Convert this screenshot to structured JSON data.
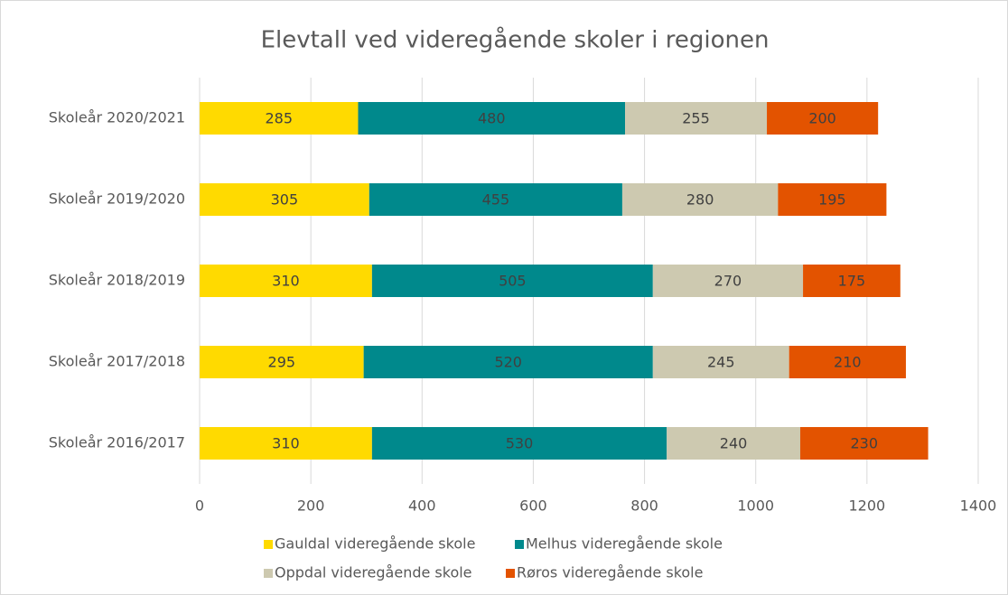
{
  "chart_data": {
    "type": "stacked-bar-horizontal",
    "title": "Elevtall ved videregående skoler i regionen",
    "categories": [
      "Skoleår 2020/2021",
      "Skoleår 2019/2020",
      "Skoleår 2018/2019",
      "Skoleår 2017/2018",
      "Skoleår 2016/2017"
    ],
    "series": [
      {
        "name": "Gauldal videregående skole",
        "color": "#ffda00",
        "values": [
          285,
          305,
          310,
          295,
          310
        ]
      },
      {
        "name": "Melhus videregående skole",
        "color": "#00898c",
        "values": [
          480,
          455,
          505,
          520,
          530
        ]
      },
      {
        "name": "Oppdal videregående skole",
        "color": "#cdc9b0",
        "values": [
          255,
          280,
          270,
          245,
          240
        ]
      },
      {
        "name": "Røros videregående skole",
        "color": "#e35300",
        "values": [
          200,
          195,
          175,
          210,
          230
        ]
      }
    ],
    "xlim": [
      0,
      1400
    ],
    "xticks": [
      0,
      200,
      400,
      600,
      800,
      1000,
      1200,
      1400
    ],
    "grid": true,
    "legend": "bottom"
  }
}
